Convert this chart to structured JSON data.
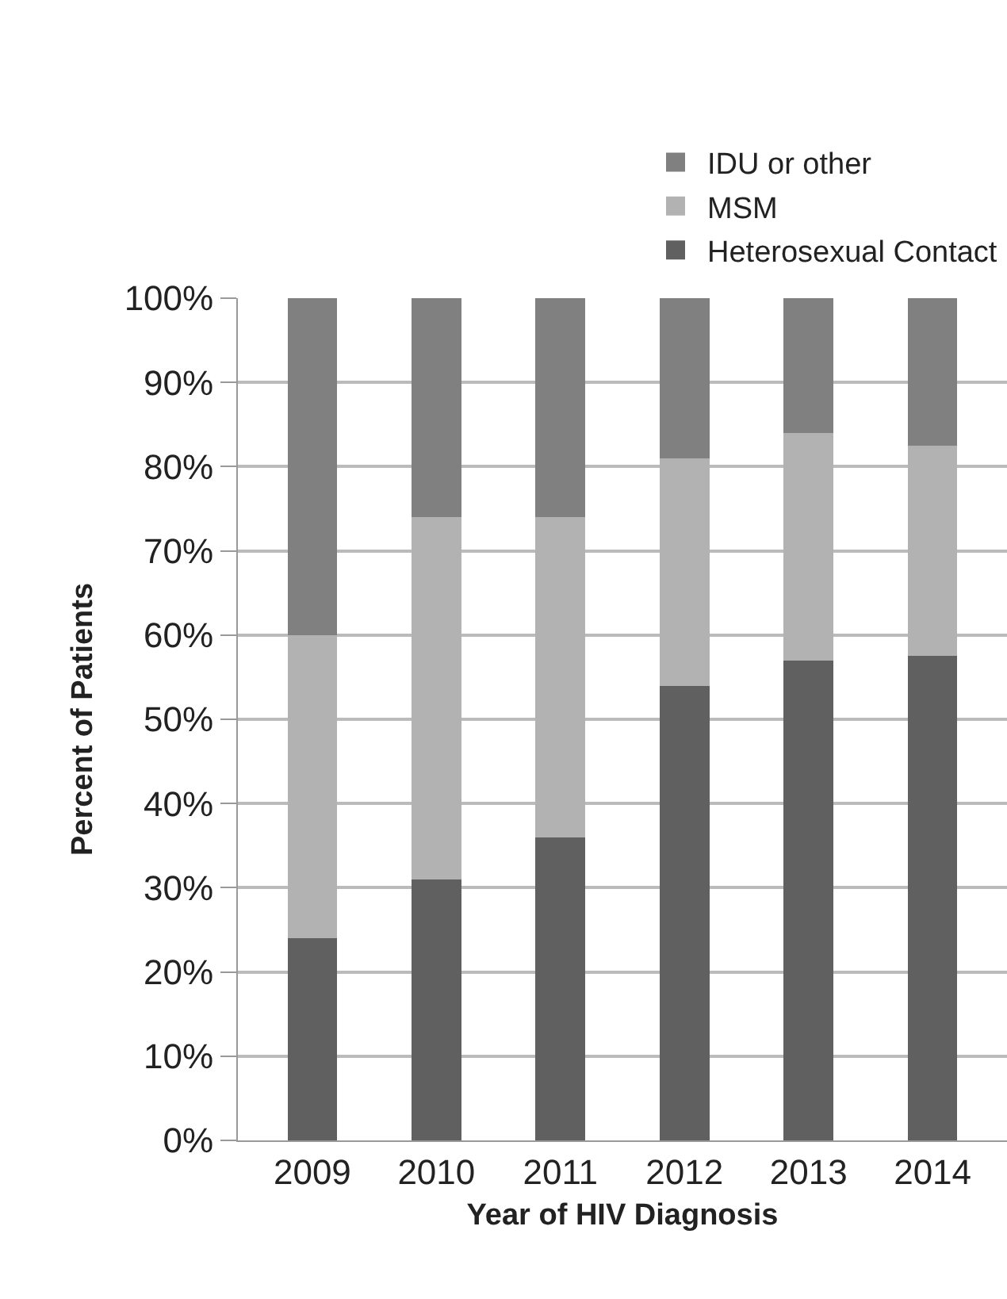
{
  "chart_data": {
    "type": "bar",
    "stacked": true,
    "xlabel": "Year of HIV Diagnosis",
    "ylabel": "Percent of Patients",
    "categories": [
      "2009",
      "2010",
      "2011",
      "2012",
      "2013",
      "2014"
    ],
    "series": [
      {
        "name": "Heterosexual Contact",
        "color": "#606060",
        "values": [
          24,
          31,
          36,
          54,
          57,
          57.5
        ]
      },
      {
        "name": "MSM",
        "color": "#b2b2b2",
        "values": [
          36,
          43,
          38,
          27,
          27,
          25
        ]
      },
      {
        "name": "IDU or other",
        "color": "#808080",
        "values": [
          40,
          26,
          26,
          19,
          16,
          17.5
        ]
      }
    ],
    "ylim": [
      0,
      100
    ],
    "yticks": [
      {
        "value": 0,
        "label": "0%"
      },
      {
        "value": 10,
        "label": "10%"
      },
      {
        "value": 20,
        "label": "20%"
      },
      {
        "value": 30,
        "label": "30%"
      },
      {
        "value": 40,
        "label": "40%"
      },
      {
        "value": 50,
        "label": "50%"
      },
      {
        "value": 60,
        "label": "60%"
      },
      {
        "value": 70,
        "label": "70%"
      },
      {
        "value": 80,
        "label": "80%"
      },
      {
        "value": 90,
        "label": "90%"
      },
      {
        "value": 100,
        "label": "100%"
      }
    ],
    "grid": "y",
    "legend": "top right"
  }
}
